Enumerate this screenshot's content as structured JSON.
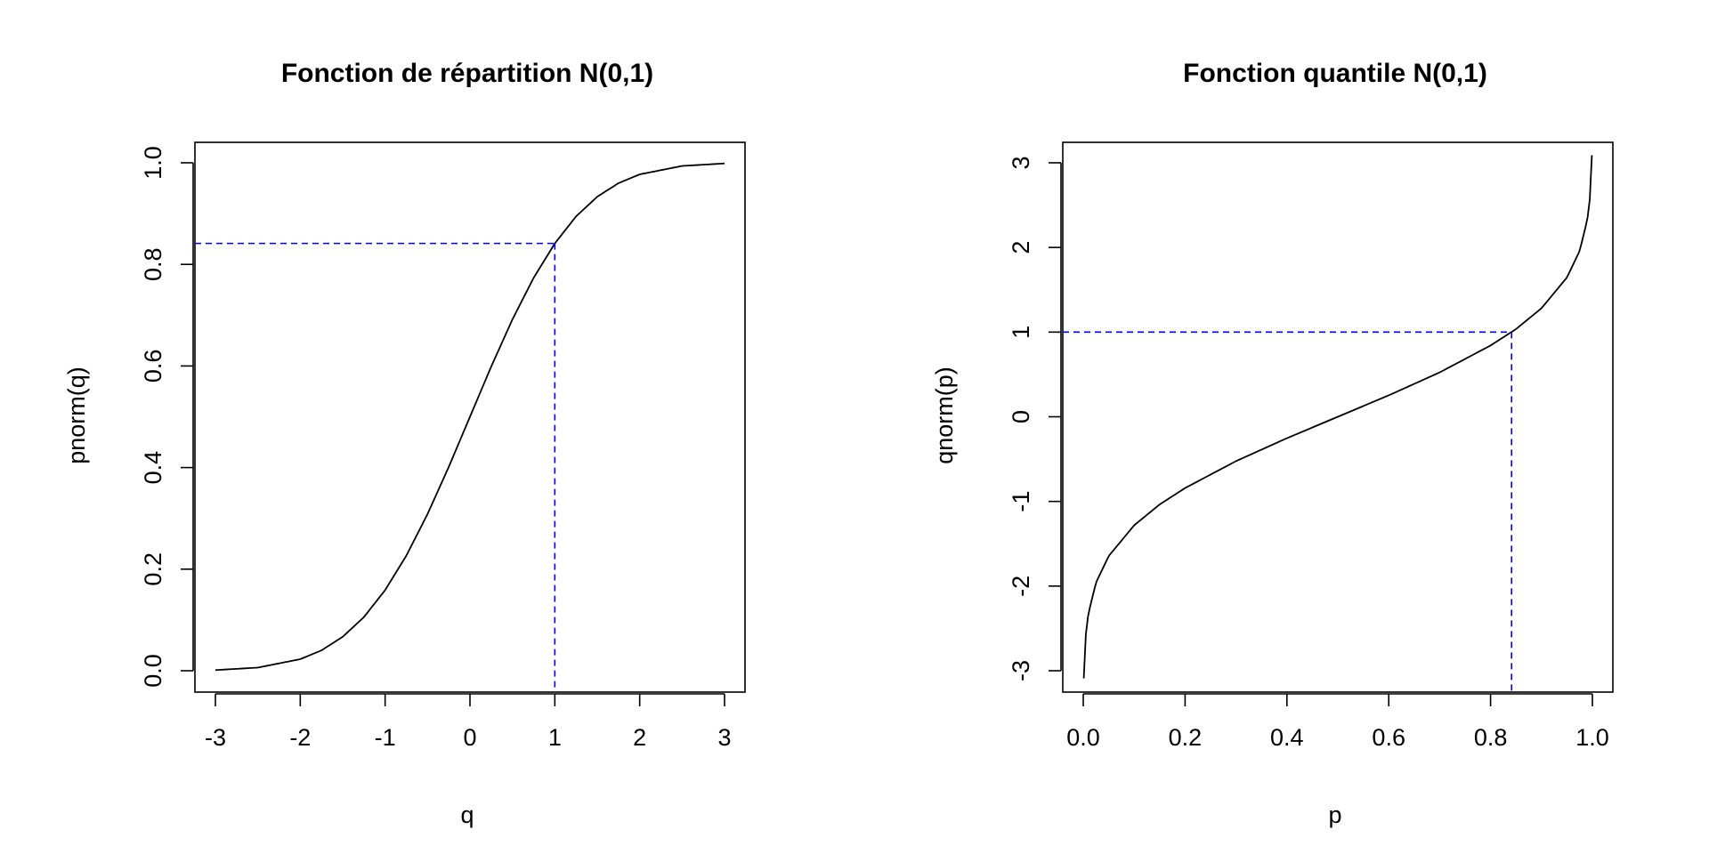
{
  "chart_data": [
    {
      "type": "line",
      "title": "Fonction de répartition N(0,1)",
      "xlabel": "q",
      "ylabel": "pnorm(q)",
      "xlim": [
        -3,
        3
      ],
      "ylim": [
        0,
        1
      ],
      "xticks": [
        -3,
        -2,
        -1,
        0,
        1,
        2,
        3
      ],
      "xtick_labels": [
        "-3",
        "-2",
        "-1",
        "0",
        "1",
        "2",
        "3"
      ],
      "yticks": [
        0.0,
        0.2,
        0.4,
        0.6,
        0.8,
        1.0
      ],
      "ytick_labels": [
        "0.0",
        "0.2",
        "0.4",
        "0.6",
        "0.8",
        "1.0"
      ],
      "grid": false,
      "series": [
        {
          "color": "#000000",
          "x": [
            -3,
            -2.5,
            -2,
            -1.75,
            -1.5,
            -1.25,
            -1,
            -0.75,
            -0.5,
            -0.25,
            0,
            0.25,
            0.5,
            0.75,
            1,
            1.25,
            1.5,
            1.75,
            2,
            2.5,
            3
          ],
          "y": [
            0.0013,
            0.0062,
            0.0228,
            0.0401,
            0.0668,
            0.1056,
            0.1587,
            0.2266,
            0.3085,
            0.4013,
            0.5,
            0.5987,
            0.6915,
            0.7734,
            0.8413,
            0.8944,
            0.9332,
            0.9599,
            0.9772,
            0.9938,
            0.9987
          ]
        }
      ],
      "reference_point": {
        "x": 1,
        "y": 0.8413,
        "color": "#0000ff",
        "style": "dashed"
      }
    },
    {
      "type": "line",
      "title": "Fonction quantile  N(0,1)",
      "xlabel": "p",
      "ylabel": "qnorm(p)",
      "xlim": [
        0,
        1
      ],
      "ylim": [
        -3,
        3
      ],
      "xticks": [
        0.0,
        0.2,
        0.4,
        0.6,
        0.8,
        1.0
      ],
      "xtick_labels": [
        "0.0",
        "0.2",
        "0.4",
        "0.6",
        "0.8",
        "1.0"
      ],
      "yticks": [
        -3,
        -2,
        -1,
        0,
        1,
        2,
        3
      ],
      "ytick_labels": [
        "-3",
        "-2",
        "-1",
        "0",
        "1",
        "2",
        "3"
      ],
      "grid": false,
      "series": [
        {
          "color": "#000000",
          "x": [
            0.001,
            0.005,
            0.01,
            0.025,
            0.05,
            0.1,
            0.15,
            0.2,
            0.3,
            0.4,
            0.5,
            0.6,
            0.7,
            0.8,
            0.85,
            0.9,
            0.95,
            0.975,
            0.99,
            0.995,
            0.999
          ],
          "y": [
            -3.09,
            -2.576,
            -2.326,
            -1.96,
            -1.645,
            -1.282,
            -1.036,
            -0.842,
            -0.524,
            -0.253,
            0,
            0.253,
            0.524,
            0.842,
            1.036,
            1.282,
            1.645,
            1.96,
            2.326,
            2.576,
            3.09
          ]
        }
      ],
      "reference_point": {
        "x": 0.8413,
        "y": 1,
        "color": "#0000ff",
        "style": "dashed"
      }
    }
  ]
}
